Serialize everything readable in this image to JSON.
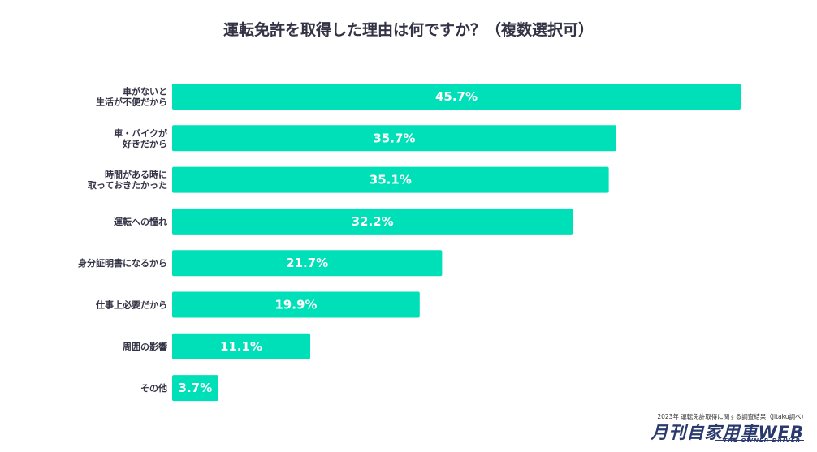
{
  "title": "運転免許を取得した理由は何ですか？（複数選択可）",
  "source": "2023年 運転免許取得に関する調査結果（Jitaku調べ）",
  "logo": {
    "main": "月刊自家用車WEB",
    "sub": "THE OWNER DRIVER"
  },
  "colors": {
    "bar": "#00e0b8",
    "text": "#333345"
  },
  "chart_data": {
    "type": "bar",
    "orientation": "horizontal",
    "categories": [
      [
        "車がないと",
        "生活が不便だから"
      ],
      [
        "車・バイクが",
        "好きだから"
      ],
      [
        "時間がある時に",
        "取っておきたかった"
      ],
      [
        "運転への憧れ"
      ],
      [
        "身分証明書になるから"
      ],
      [
        "仕事上必要だから"
      ],
      [
        "周囲の影響"
      ],
      [
        "その他"
      ]
    ],
    "values": [
      45.7,
      35.7,
      35.1,
      32.2,
      21.7,
      19.9,
      11.1,
      3.7
    ],
    "value_labels": [
      "45.7%",
      "35.7%",
      "35.1%",
      "32.2%",
      "21.7%",
      "19.9%",
      "11.1%",
      "3.7%"
    ],
    "xlim": [
      0,
      45.7
    ],
    "grid": false,
    "legend": "none"
  }
}
